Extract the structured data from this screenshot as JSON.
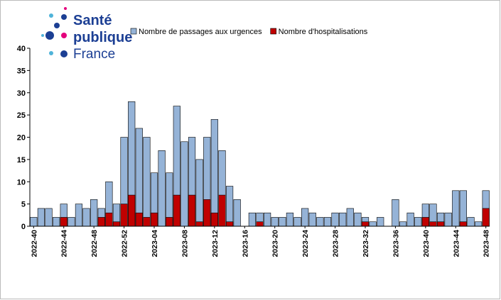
{
  "logo": {
    "line1": "Santé",
    "line2": "publique",
    "line3": "France"
  },
  "chart_data": {
    "type": "bar",
    "categories": [
      "2022-40",
      null,
      null,
      null,
      "2022-44",
      null,
      null,
      null,
      "2022-48",
      null,
      null,
      null,
      "2022-52",
      null,
      null,
      null,
      "2023-04",
      null,
      null,
      null,
      "2023-08",
      null,
      null,
      null,
      "2023-12",
      null,
      null,
      null,
      "2023-16",
      null,
      null,
      null,
      "2023-20",
      null,
      null,
      null,
      "2023-24",
      null,
      null,
      null,
      "2023-28",
      null,
      null,
      null,
      "2023-32",
      null,
      null,
      null,
      "2023-36",
      null,
      null,
      null,
      "2023-40",
      null,
      null,
      null,
      "2023-44",
      null,
      null,
      null,
      "2023-48"
    ],
    "series": [
      {
        "name": "Nombre de passages aux urgences",
        "color": "#95b3d7",
        "values": [
          2,
          4,
          4,
          2,
          5,
          2,
          5,
          4,
          6,
          4,
          10,
          5,
          20,
          28,
          22,
          20,
          12,
          17,
          12,
          27,
          19,
          20,
          15,
          20,
          24,
          17,
          9,
          6,
          0,
          3,
          3,
          3,
          2,
          2,
          3,
          2,
          4,
          3,
          2,
          2,
          3,
          3,
          4,
          3,
          2,
          1,
          2,
          0,
          6,
          1,
          3,
          2,
          5,
          5,
          3,
          3,
          8,
          8,
          2,
          1,
          8
        ]
      },
      {
        "name": "Nombre d'hospitalisations",
        "color": "#c00000",
        "values": [
          0,
          0,
          0,
          0,
          2,
          0,
          0,
          0,
          0,
          2,
          3,
          1,
          5,
          7,
          3,
          2,
          3,
          0,
          2,
          7,
          0,
          7,
          1,
          6,
          3,
          7,
          1,
          0,
          0,
          0,
          1,
          0,
          0,
          0,
          0,
          0,
          0,
          0,
          0,
          0,
          0,
          0,
          0,
          0,
          1,
          0,
          0,
          0,
          0,
          0,
          0,
          0,
          2,
          1,
          1,
          0,
          0,
          1,
          0,
          0,
          4
        ]
      }
    ],
    "ylim": [
      0,
      40
    ],
    "yticks": [
      0,
      5,
      10,
      15,
      20,
      25,
      30,
      35,
      40
    ],
    "legend": "top"
  }
}
